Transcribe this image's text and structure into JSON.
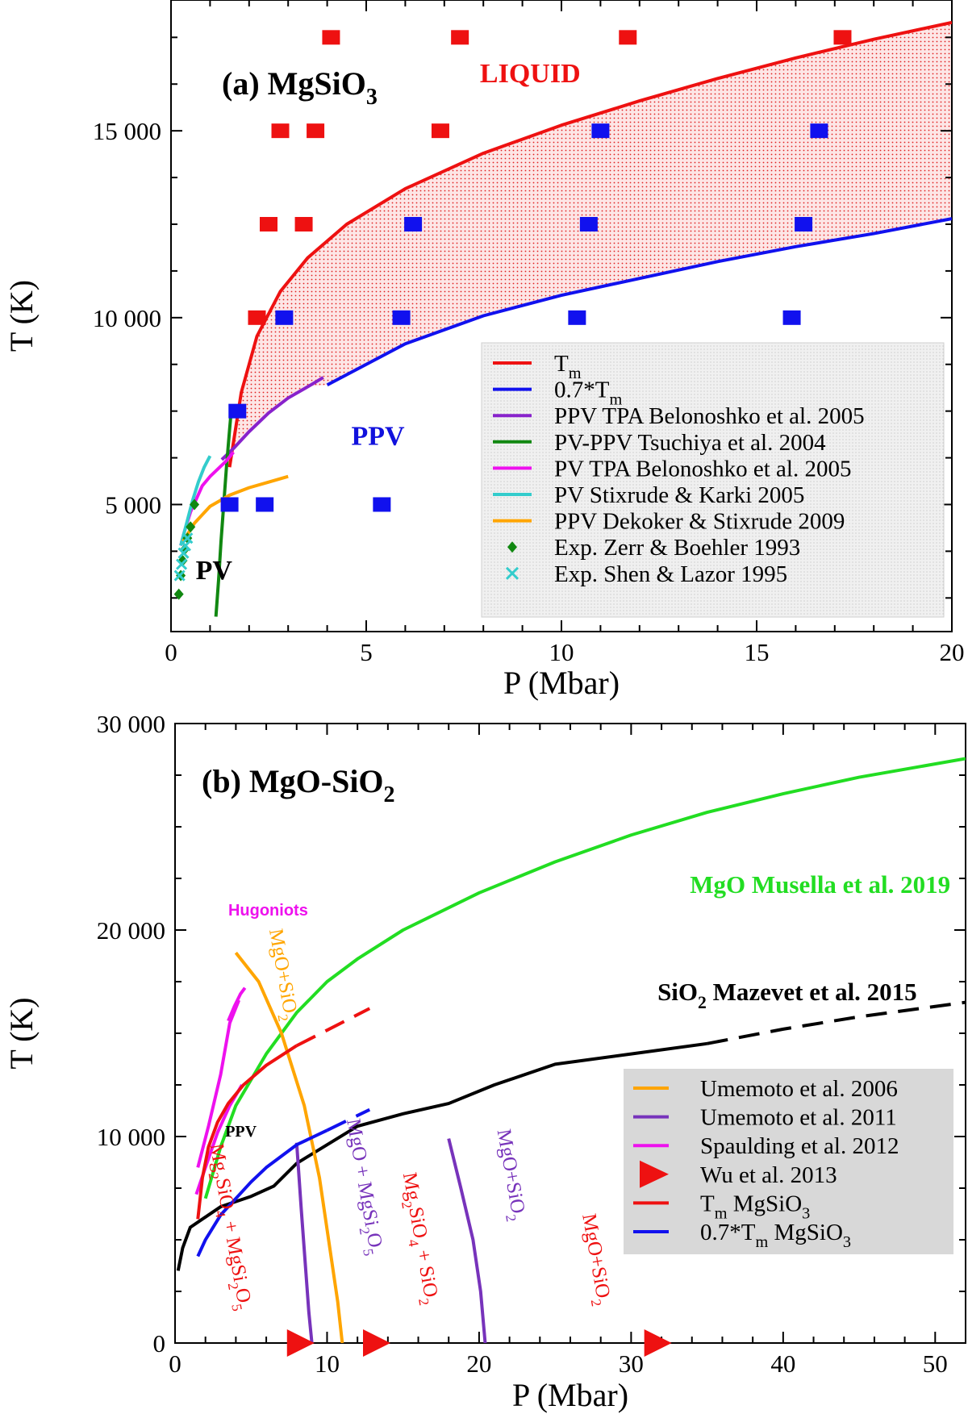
{
  "chart_data": [
    {
      "type": "line",
      "panel": "(a)",
      "title": "(a) MgSiO",
      "title_sub": "3",
      "xlabel": "P (Mbar)",
      "ylabel": "T (K)",
      "xlim": [
        0,
        20
      ],
      "ylim": [
        1600,
        18500
      ],
      "xticks": [
        0,
        5,
        10,
        15,
        20
      ],
      "xtick_labels": [
        "0",
        "5",
        "10",
        "15",
        "20"
      ],
      "yticks": [
        5000,
        10000,
        15000
      ],
      "ytick_labels": [
        "5 000",
        "10 000",
        "15 000"
      ],
      "region_labels": [
        {
          "text": "LIQUID",
          "color": "#ee1111",
          "x": 9.2,
          "y": 16300
        },
        {
          "text": "PPV",
          "color": "#1111dd",
          "x": 5.3,
          "y": 6600
        },
        {
          "text": "PV",
          "color": "#000000",
          "x": 1.1,
          "y": 3000
        }
      ],
      "shaded_region": {
        "between": [
          "T_m",
          "0.7*T_m"
        ],
        "color": "#ee2222",
        "pattern": "dotted"
      },
      "series": [
        {
          "name": "T",
          "name_sub": "m",
          "color": "#ee1111",
          "kind": "line",
          "x": [
            1.5,
            1.8,
            2.2,
            2.8,
            3.5,
            4.5,
            6,
            8,
            10,
            12,
            14,
            16,
            18,
            20
          ],
          "y": [
            6000,
            8000,
            9500,
            10700,
            11600,
            12500,
            13450,
            14400,
            15150,
            15800,
            16400,
            16950,
            17450,
            17900
          ]
        },
        {
          "name": "0.7*T",
          "name_sub": "m",
          "color": "#1111ee",
          "kind": "line",
          "x": [
            4,
            5,
            6,
            8,
            10,
            12,
            14,
            16,
            18,
            20
          ],
          "y": [
            8200,
            8750,
            9300,
            10050,
            10600,
            11050,
            11500,
            11900,
            12250,
            12650
          ]
        },
        {
          "name": "PPV TPA Belonoshko et al. 2005",
          "color": "#8822cc",
          "kind": "line",
          "x": [
            1.3,
            1.6,
            2.0,
            2.5,
            3.0,
            3.5,
            3.9
          ],
          "y": [
            6200,
            6500,
            6950,
            7450,
            7850,
            8150,
            8400
          ]
        },
        {
          "name": "PV-PPV Tsuchiya et al. 2004",
          "color": "#118811",
          "kind": "line",
          "x": [
            1.15,
            1.22,
            1.28,
            1.35,
            1.42,
            1.5,
            1.55
          ],
          "y": [
            2000,
            3000,
            4000,
            5000,
            6000,
            7000,
            7600
          ]
        },
        {
          "name": "PV TPA Belonoshko et al. 2005",
          "color": "#ee11ee",
          "kind": "line",
          "x": [
            0.25,
            0.35,
            0.5,
            0.65,
            0.8,
            1.0,
            1.2,
            1.4,
            1.6
          ],
          "y": [
            3900,
            4300,
            4800,
            5150,
            5500,
            5750,
            5950,
            6150,
            6400
          ]
        },
        {
          "name": "PV Stixrude & Karki 2005",
          "color": "#33cccc",
          "kind": "line",
          "x": [
            0.25,
            0.4,
            0.55,
            0.7,
            0.85,
            1.0
          ],
          "y": [
            3900,
            4500,
            5100,
            5600,
            6000,
            6300
          ]
        },
        {
          "name": "PPV Dekoker & Stixrude 2009",
          "color": "#ffa500",
          "kind": "line",
          "x": [
            0.3,
            0.6,
            1.0,
            1.5,
            2.0,
            2.5,
            3.0
          ],
          "y": [
            4000,
            4500,
            4950,
            5250,
            5450,
            5600,
            5750
          ]
        },
        {
          "name": "Exp. Zerr & Boehler 1993",
          "color": "#118811",
          "kind": "scatter",
          "marker": "diamond",
          "x": [
            0.2,
            0.25,
            0.3,
            0.35,
            0.42,
            0.5,
            0.6
          ],
          "y": [
            2600,
            3100,
            3500,
            3800,
            4100,
            4400,
            5000
          ]
        },
        {
          "name": "Exp. Shen & Lazor 1995",
          "color": "#33cccc",
          "kind": "scatter",
          "marker": "x",
          "x": [
            0.22,
            0.27,
            0.32,
            0.37,
            0.42
          ],
          "y": [
            3100,
            3400,
            3700,
            3900,
            4100
          ]
        },
        {
          "name": "",
          "color": "#ee1111",
          "kind": "scatter",
          "marker": "square",
          "x": [
            4.1,
            7.4,
            11.7,
            17.2,
            2.8,
            3.7,
            6.9,
            2.5,
            3.4,
            2.2
          ],
          "y": [
            17500,
            17500,
            17500,
            17500,
            15000,
            15000,
            15000,
            12500,
            12500,
            10000
          ]
        },
        {
          "name": "",
          "color": "#1111ee",
          "kind": "scatter",
          "marker": "square",
          "x": [
            11.0,
            16.6,
            6.2,
            10.7,
            16.2,
            2.9,
            5.9,
            10.4,
            15.9,
            1.7,
            1.5,
            2.4,
            5.4
          ],
          "y": [
            15000,
            15000,
            12500,
            12500,
            12500,
            10000,
            10000,
            10000,
            10000,
            7500,
            5000,
            5000,
            5000
          ]
        }
      ],
      "legend": {
        "placement": "lower-right"
      }
    },
    {
      "type": "line",
      "panel": "(b)",
      "title": "(b) MgO-SiO",
      "title_sub": "2",
      "xlabel": "P (Mbar)",
      "ylabel": "T (K)",
      "xlim": [
        0,
        52
      ],
      "ylim": [
        0,
        30000
      ],
      "xticks": [
        0,
        10,
        20,
        30,
        40,
        50
      ],
      "xtick_labels": [
        "0",
        "10",
        "20",
        "30",
        "40",
        "50"
      ],
      "yticks": [
        0,
        10000,
        20000,
        30000
      ],
      "ytick_labels": [
        "0",
        "10 000",
        "20 000",
        "30 000"
      ],
      "annotations": [
        {
          "text": "MgO Musella et al. 2019",
          "color": "#22dd22",
          "x": 51,
          "y": 21800,
          "anchor": "end",
          "size": 31,
          "weight": "bold",
          "family": "serif"
        },
        {
          "text": "SiO",
          "sub": "2",
          "tail": " Mazevet et al. 2015",
          "color": "#000000",
          "x": 48.8,
          "y": 16600,
          "anchor": "end",
          "size": 31,
          "weight": "bold",
          "family": "serif"
        },
        {
          "text": "Hugoniots",
          "color": "#ee11ee",
          "x": 3.5,
          "y": 20700,
          "anchor": "start",
          "size": 20,
          "weight": "bold",
          "family": "sans"
        },
        {
          "text": "PPV",
          "color": "#000000",
          "x": 3.3,
          "y": 10000,
          "anchor": "start",
          "size": 20,
          "weight": "bold",
          "family": "serif"
        }
      ],
      "phase_labels": [
        {
          "text": "MgO+SiO",
          "sub": "2",
          "color": "#ffa500",
          "x": 6.2,
          "y": 20000,
          "rotate": 80
        },
        {
          "text": "Mg",
          "sub": "2",
          "text2": "SiO",
          "sub2": "4",
          "text3": " + MgSi",
          "sub3": "2",
          "text4": "O",
          "sub4": "5",
          "color": "#ee1111",
          "x": 2.3,
          "y": 9600,
          "rotate": 80
        },
        {
          "text": "MgO + MgSi",
          "sub": "2",
          "text2": "O",
          "sub2": "5",
          "color": "#7733bb",
          "x": 11.3,
          "y": 10800,
          "rotate": 80
        },
        {
          "text": "Mg",
          "sub": "2",
          "text2": "SiO",
          "sub2": "4",
          "text3": " + SiO",
          "sub3": "2",
          "color": "#ee1111",
          "x": 15.0,
          "y": 8200,
          "rotate": 80
        },
        {
          "text": "MgO+SiO",
          "sub": "2",
          "color": "#7733bb",
          "x": 21.2,
          "y": 10300,
          "rotate": 80
        },
        {
          "text": "MgO+SiO",
          "sub": "2",
          "color": "#ee1111",
          "x": 26.8,
          "y": 6200,
          "rotate": 80
        }
      ],
      "series": [
        {
          "name": "MgO Musella et al. 2019",
          "color": "#22dd22",
          "kind": "line",
          "in_legend": false,
          "x": [
            2,
            3,
            4,
            6,
            8,
            10,
            12,
            15,
            20,
            25,
            30,
            35,
            40,
            45,
            52
          ],
          "y": [
            7000,
            9500,
            11500,
            14000,
            16000,
            17500,
            18600,
            20000,
            21800,
            23300,
            24600,
            25700,
            26600,
            27400,
            28300
          ]
        },
        {
          "name": "SiO2 Mazevet et al. 2015",
          "color": "#000000",
          "kind": "line",
          "in_legend": false,
          "x": [
            0.2,
            0.5,
            1,
            2,
            3,
            5,
            6.5,
            8,
            12,
            15,
            18,
            21,
            25,
            30,
            35
          ],
          "y": [
            3500,
            4600,
            5600,
            6100,
            6600,
            7100,
            7600,
            8700,
            10500,
            11100,
            11600,
            12500,
            13500,
            14000,
            14500
          ]
        },
        {
          "name": "SiO2 Mazevet et al. 2015 (extrapolated)",
          "color": "#000000",
          "kind": "dashed",
          "in_legend": false,
          "x": [
            35,
            40,
            45,
            52
          ],
          "y": [
            14500,
            15200,
            15800,
            16500
          ]
        },
        {
          "name": "Umemoto et al. 2006",
          "color": "#ffa500",
          "kind": "line",
          "x": [
            4.0,
            5.5,
            7.0,
            8.5,
            9.5,
            10.2,
            10.7,
            11.0
          ],
          "y": [
            18900,
            17500,
            15000,
            11500,
            8000,
            4500,
            2000,
            0
          ]
        },
        {
          "name": "Umemoto et al. 2011",
          "color": "#7733bb",
          "kind": "line",
          "x": [
            8.0,
            8.3,
            8.6,
            8.8,
            9.0
          ],
          "y": [
            9700,
            6500,
            3500,
            1500,
            0
          ]
        },
        {
          "name": "Umemoto et al. 2011",
          "color": "#7733bb",
          "kind": "line",
          "in_legend": false,
          "x": [
            18.0,
            18.8,
            19.6,
            20.1,
            20.4
          ],
          "y": [
            9900,
            7500,
            5000,
            2500,
            0
          ]
        },
        {
          "name": "Spaulding et al. 2012",
          "color": "#ee11ee",
          "kind": "line",
          "x": [
            1.5,
            2.2,
            3.0,
            3.6,
            4.2
          ],
          "y": [
            8500,
            10500,
            13000,
            15500,
            16600
          ]
        },
        {
          "name": "Spaulding et al. 2012",
          "color": "#ee11ee",
          "kind": "line",
          "in_legend": false,
          "x": [
            1.4,
            2.0,
            2.8,
            3.6,
            4.4
          ],
          "y": [
            7200,
            8500,
            10200,
            11500,
            12500
          ]
        },
        {
          "name": "Spaulding et al. 2012",
          "color": "#ee11ee",
          "kind": "line",
          "in_legend": false,
          "x": [
            3.5,
            3.9,
            4.3,
            4.6
          ],
          "y": [
            15600,
            16300,
            16900,
            17200
          ]
        },
        {
          "name": "Wu et al. 2013",
          "color": "#ee1111",
          "kind": "scatter",
          "marker": "triangle-right",
          "x": [
            8.0,
            13.0,
            31.5
          ],
          "y": [
            0,
            0,
            0
          ]
        },
        {
          "name": "T",
          "name_sub": "m",
          "name_tail": " MgSiO",
          "name_sub2": "3",
          "color": "#ee1111",
          "kind": "line",
          "x": [
            1.5,
            1.8,
            2.2,
            2.8,
            3.5,
            4.5,
            6,
            8
          ],
          "y": [
            6000,
            8000,
            9500,
            10700,
            11600,
            12500,
            13450,
            14400
          ]
        },
        {
          "name": "T_m MgSiO3 (extrapolated)",
          "color": "#ee1111",
          "kind": "dashed",
          "in_legend": false,
          "x": [
            8,
            10,
            12.8
          ],
          "y": [
            14400,
            15150,
            16200
          ]
        },
        {
          "name": "0.7*T",
          "name_sub": "m",
          "name_tail": " MgSiO",
          "name_sub2": "3",
          "color": "#1111ee",
          "kind": "line",
          "x": [
            1.5,
            2.0,
            3.0,
            4.0,
            5.0,
            6.0,
            8.0,
            10.0
          ],
          "y": [
            4200,
            5000,
            6200,
            7000,
            7800,
            8500,
            9600,
            10300
          ]
        },
        {
          "name": "0.7*T_m MgSiO3 (extrapolated)",
          "color": "#1111ee",
          "kind": "dashed",
          "in_legend": false,
          "x": [
            10,
            12.8
          ],
          "y": [
            10300,
            11300
          ]
        }
      ],
      "legend": {
        "placement": "lower-right",
        "background": "#d8d8d8"
      }
    }
  ]
}
